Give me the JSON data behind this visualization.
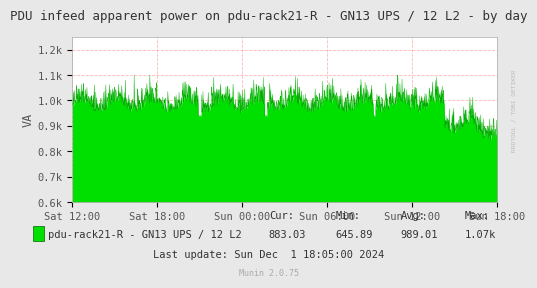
{
  "title": "PDU infeed apparent power on pdu-rack21-R - GN13 UPS / 12 L2 - by day",
  "ylabel": "VA",
  "background_color": "#e8e8e8",
  "plot_bg_color": "#ffffff",
  "fill_color": "#00e000",
  "line_color": "#00aa00",
  "grid_color": "#ff9999",
  "grid_linestyle": "--",
  "ylim_min": 600,
  "ylim_max": 1250,
  "yticks": [
    600,
    700,
    800,
    900,
    1000,
    1100,
    1200
  ],
  "ytick_labels": [
    "0.6k",
    "0.7k",
    "0.8k",
    "0.9k",
    "1.0k",
    "1.1k",
    "1.2k"
  ],
  "xtick_labels": [
    "Sat 12:00",
    "Sat 18:00",
    "Sun 00:00",
    "Sun 06:00",
    "Sun 12:00",
    "Sun 18:00"
  ],
  "legend_label": "pdu-rack21-R - GN13 UPS / 12 L2",
  "cur": "883.03",
  "min": "645.89",
  "avg": "989.01",
  "max": "1.07k",
  "last_update": "Last update: Sun Dec  1 18:05:00 2024",
  "munin_version": "Munin 2.0.75",
  "rrdtool_label": "RRDTOOL / TOBI OETIKER",
  "title_fontsize": 9,
  "tick_fontsize": 7.5,
  "legend_fontsize": 7.5
}
